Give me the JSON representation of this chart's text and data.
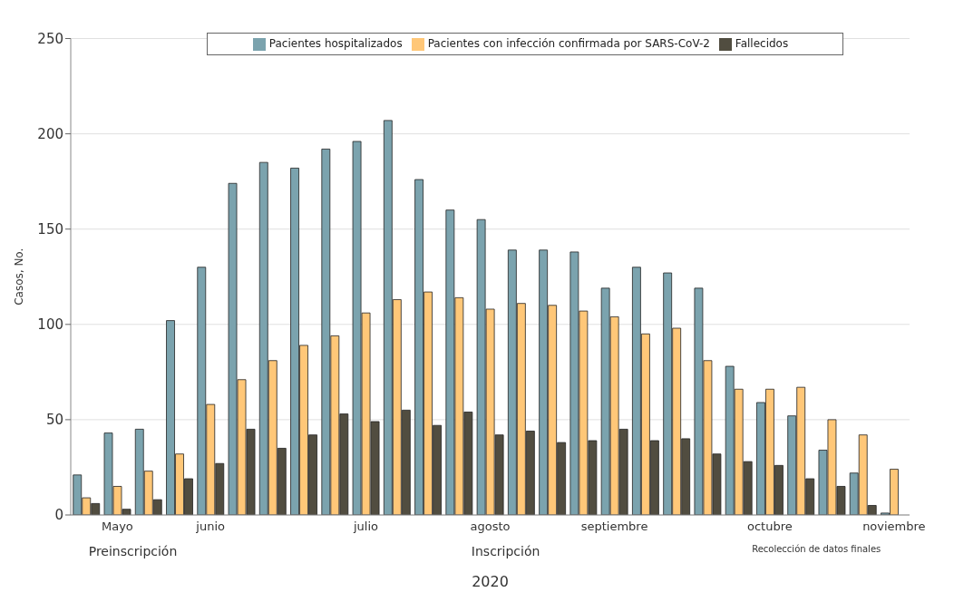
{
  "chart_data": {
    "type": "bar",
    "ylabel": "Casos, No.",
    "xlabel": "2020",
    "categories": [
      null,
      "Mayo",
      null,
      null,
      "junio",
      null,
      null,
      null,
      null,
      "julio",
      null,
      null,
      null,
      "agosto",
      null,
      null,
      null,
      "septiembre",
      null,
      null,
      null,
      null,
      "octubre",
      null,
      null,
      null,
      "noviembre"
    ],
    "series": [
      {
        "name": "Pacientes hospitalizados",
        "color": "#7ba3ae",
        "values": [
          21,
          43,
          45,
          102,
          130,
          174,
          185,
          182,
          192,
          196,
          207,
          176,
          160,
          155,
          139,
          139,
          138,
          119,
          130,
          127,
          119,
          78,
          59,
          52,
          34,
          22,
          1
        ]
      },
      {
        "name": "Pacientes con infección confirmada por SARS-CoV-2",
        "color": "#ffc778",
        "values": [
          9,
          15,
          23,
          32,
          58,
          71,
          81,
          89,
          94,
          106,
          113,
          117,
          114,
          108,
          111,
          110,
          107,
          104,
          95,
          98,
          81,
          66,
          66,
          67,
          50,
          42,
          24
        ]
      },
      {
        "name": "Fallecidos",
        "color": "#514d40",
        "values": [
          6,
          3,
          8,
          19,
          27,
          45,
          35,
          42,
          53,
          49,
          55,
          47,
          54,
          42,
          44,
          38,
          39,
          45,
          39,
          40,
          32,
          28,
          26,
          19,
          15,
          5,
          null
        ]
      }
    ],
    "ylim": [
      0,
      250
    ],
    "yticks": [
      0,
      50,
      100,
      150,
      200,
      250
    ],
    "grid": "y",
    "legend": "top",
    "annotations": [
      "Preinscripción",
      "Inscripción",
      "Recolección de datos finales"
    ]
  }
}
